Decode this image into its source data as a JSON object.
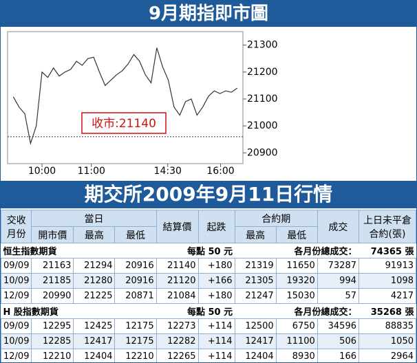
{
  "chart_data": {
    "type": "line",
    "title": "9月期指即市圖",
    "values": [
      21108,
      21070,
      21045,
      20935,
      21000,
      21200,
      21180,
      21215,
      21185,
      21200,
      21210,
      21240,
      21225,
      21250,
      21255,
      21200,
      21150,
      21170,
      21190,
      21205,
      21230,
      21265,
      21240,
      21190,
      21160,
      21290,
      21220,
      21170,
      21070,
      21040,
      21090,
      21100,
      21040,
      21070,
      21110,
      21130,
      21120,
      21130,
      21125,
      21140
    ],
    "color": "#333333",
    "xlim": [
      -1,
      40
    ],
    "xticks": [
      {
        "value": 5,
        "label": "10:00"
      },
      {
        "value": 13.6,
        "label": "11:00"
      },
      {
        "value": 26.9,
        "label": "14:30"
      },
      {
        "value": 36.1,
        "label": "16:00"
      }
    ],
    "ylim": [
      20860,
      21350
    ],
    "yticks": [
      20900,
      21000,
      21100,
      21200,
      21300
    ],
    "reference_line": 20960,
    "annotation": "收市:21140"
  },
  "table": {
    "title": "期交所2009年9月11日行情",
    "header": {
      "month": "交收月份",
      "day": "當日",
      "open": "開市價",
      "high": "最高",
      "low": "最低",
      "settle": "結算價",
      "change": "起跌",
      "contract": "合約期",
      "c_high": "最高",
      "c_low": "最低",
      "volume": "成交",
      "oi": "上日未平倉合約(張)"
    },
    "sections": [
      {
        "name": "恒生指數期貨",
        "point": "每點 50 元",
        "total_label": "各月份總成交：",
        "total": "74365 張",
        "rows": [
          [
            "09/09",
            "21163",
            "21294",
            "20916",
            "21140",
            "+180",
            "21319",
            "11650",
            "73287",
            "91913"
          ],
          [
            "10/09",
            "21185",
            "21280",
            "20916",
            "21120",
            "+166",
            "21305",
            "19320",
            "994",
            "1098"
          ],
          [
            "12/09",
            "20990",
            "21225",
            "20871",
            "21084",
            "+180",
            "21247",
            "15030",
            "57",
            "4217"
          ]
        ]
      },
      {
        "name": "H 股指數期貨",
        "point": "每點 50 元",
        "total_label": "各月份總成交：",
        "total": "35268 張",
        "rows": [
          [
            "09/09",
            "12295",
            "12425",
            "12175",
            "12273",
            "+114",
            "12500",
            "6750",
            "34596",
            "88835"
          ],
          [
            "10/09",
            "12285",
            "12417",
            "12175",
            "12282",
            "+114",
            "12417",
            "11100",
            "506",
            "1050"
          ],
          [
            "12/09",
            "12210",
            "12404",
            "12210",
            "12265",
            "+114",
            "12404",
            "8930",
            "166",
            "2964"
          ]
        ]
      }
    ]
  }
}
